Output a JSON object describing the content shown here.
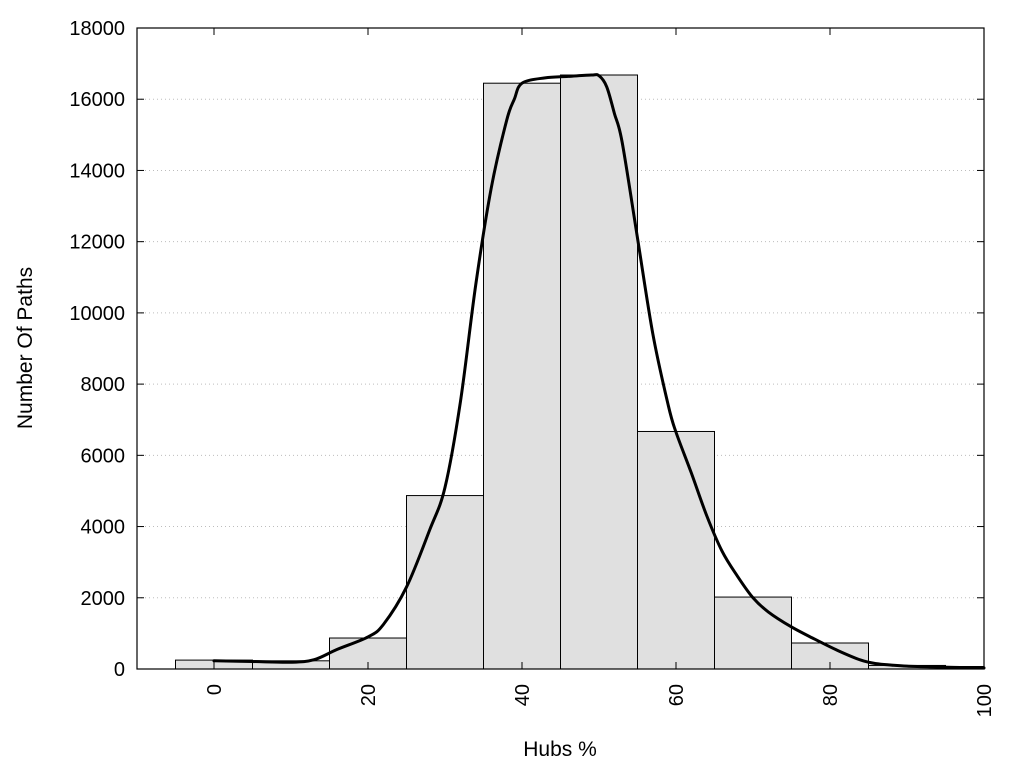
{
  "chart_data": {
    "type": "bar",
    "title": "",
    "xlabel": "Hubs %",
    "ylabel": "Number Of Paths",
    "xlim": [
      -10,
      100
    ],
    "ylim": [
      0,
      18000
    ],
    "x_ticks": [
      0,
      20,
      40,
      60,
      80,
      100
    ],
    "y_ticks": [
      0,
      2000,
      4000,
      6000,
      8000,
      10000,
      12000,
      14000,
      16000,
      18000
    ],
    "grid": "horizontal-dotted",
    "bin_width": 10,
    "bars": {
      "centers": [
        0,
        10,
        20,
        30,
        40,
        50,
        60,
        70,
        80,
        90,
        100
      ],
      "values": [
        250,
        230,
        870,
        4870,
        16450,
        16680,
        6670,
        2020,
        730,
        100,
        70
      ]
    },
    "curve": {
      "x": [
        0,
        5,
        10,
        13,
        16,
        20,
        22,
        25,
        28,
        30,
        32,
        34,
        36,
        38,
        39,
        40,
        43,
        46,
        49,
        50,
        51,
        52,
        53,
        55,
        57,
        59,
        60,
        62,
        64,
        66,
        68,
        70,
        72,
        75,
        78,
        81,
        84,
        86,
        88,
        90,
        93,
        96,
        100
      ],
      "y": [
        230,
        210,
        190,
        260,
        550,
        900,
        1250,
        2300,
        3900,
        5100,
        7500,
        10800,
        13500,
        15400,
        16000,
        16450,
        16600,
        16640,
        16680,
        16660,
        16350,
        15600,
        14800,
        12100,
        9400,
        7400,
        6650,
        5500,
        4300,
        3300,
        2600,
        2000,
        1600,
        1180,
        840,
        520,
        250,
        150,
        110,
        80,
        60,
        45,
        30
      ]
    },
    "colors": {
      "bar_fill": "#e0e0e0",
      "bar_stroke": "#000000",
      "curve": "#000000",
      "grid": "#bdbdbd"
    }
  }
}
